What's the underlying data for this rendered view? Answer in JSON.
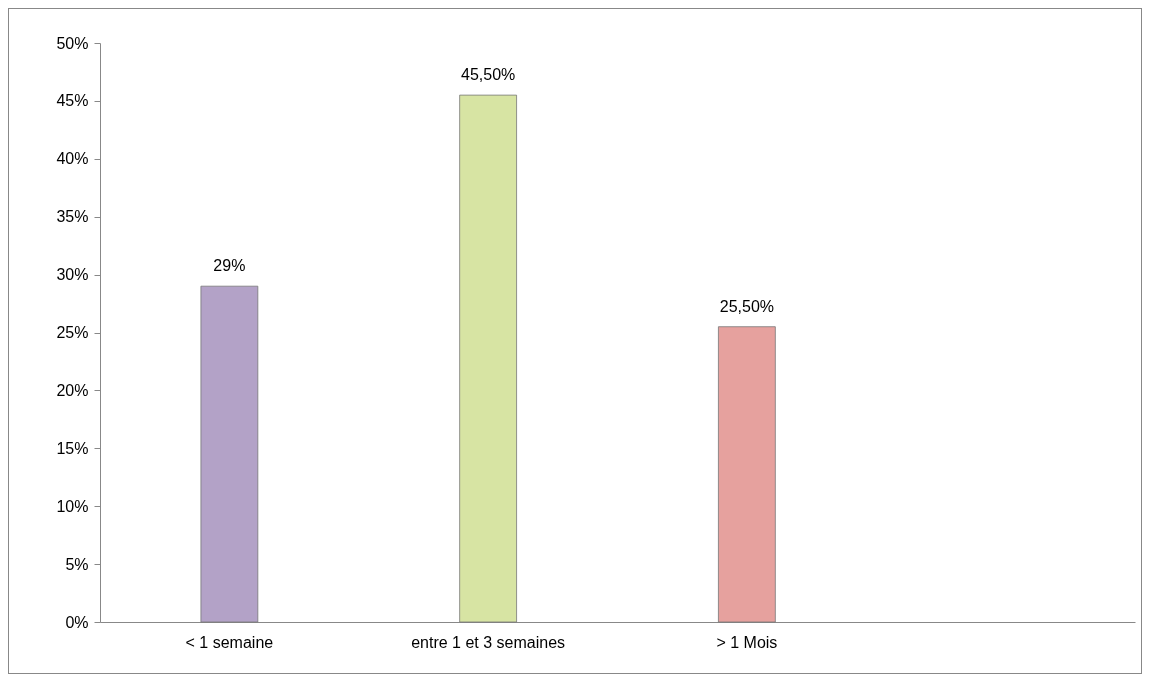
{
  "chart_data": {
    "type": "bar",
    "categories": [
      "< 1 semaine",
      "entre 1 et 3 semaines",
      "> 1 Mois",
      null
    ],
    "values": [
      29,
      45.5,
      25.5,
      null
    ],
    "colors": [
      "#b3a2c7",
      "#d7e4a3",
      "#e6a19e",
      "#cccccc"
    ],
    "value_labels": [
      "29%",
      "45,50%",
      "25,50%",
      null
    ],
    "ylim": [
      0,
      50
    ],
    "yticks": [
      {
        "value": 0,
        "label": "0%"
      },
      {
        "value": 5,
        "label": "5%"
      },
      {
        "value": 10,
        "label": "10%"
      },
      {
        "value": 15,
        "label": "15%"
      },
      {
        "value": 20,
        "label": "20%"
      },
      {
        "value": 25,
        "label": "25%"
      },
      {
        "value": 30,
        "label": "30%"
      },
      {
        "value": 35,
        "label": "35%"
      },
      {
        "value": 40,
        "label": "40%"
      },
      {
        "value": 45,
        "label": "45%"
      },
      {
        "value": 50,
        "label": "50%"
      }
    ],
    "grid": false
  }
}
